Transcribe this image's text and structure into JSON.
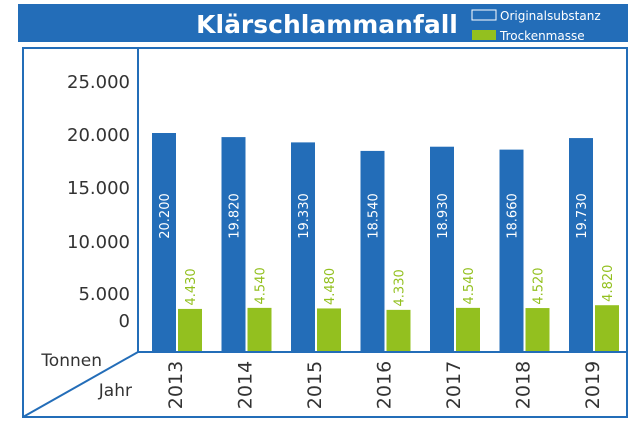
{
  "chart_data": {
    "type": "bar",
    "title": "Klärschlammanfall",
    "xlabel": "Jahr",
    "ylabel": "Tonnen",
    "categories": [
      "2013",
      "2014",
      "2015",
      "2016",
      "2017",
      "2018",
      "2019"
    ],
    "series": [
      {
        "name": "Originalsubstanz",
        "values": [
          20200,
          19820,
          19330,
          18540,
          18930,
          18660,
          19730
        ],
        "labels": [
          "20.200",
          "19.820",
          "19.330",
          "18.540",
          "18.930",
          "18.660",
          "19.730"
        ]
      },
      {
        "name": "Trockenmasse",
        "values": [
          4430,
          4540,
          4480,
          4330,
          4540,
          4520,
          4820
        ],
        "labels": [
          "4.430",
          "4.540",
          "4.480",
          "4.330",
          "4.540",
          "4.520",
          "4.820"
        ]
      }
    ],
    "yticks": [
      "25.000",
      "20.000",
      "15.000",
      "10.000",
      "5.000",
      "0"
    ],
    "ylim": [
      0,
      25000
    ],
    "legend": "top-right",
    "grid": false
  },
  "colors": {
    "primary": "#236db8",
    "secondary": "#93c01f",
    "header": "#236db8"
  }
}
